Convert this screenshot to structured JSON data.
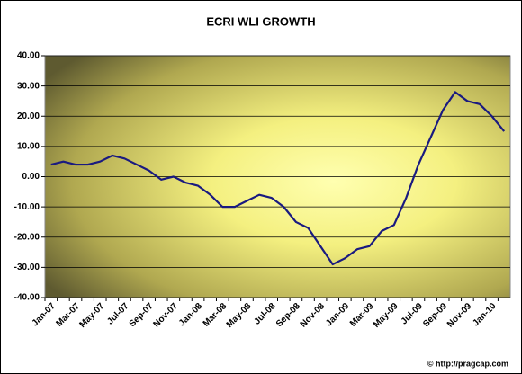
{
  "chart_data": {
    "type": "line",
    "title": "ECRI WLI GROWTH",
    "categories": [
      "Jan-07",
      null,
      "Mar-07",
      null,
      "May-07",
      null,
      "Jul-07",
      null,
      "Sep-07",
      null,
      "Nov-07",
      null,
      "Jan-08",
      null,
      "Mar-08",
      null,
      "May-08",
      null,
      "Jul-08",
      null,
      "Sep-08",
      null,
      "Nov-08",
      null,
      "Jan-09",
      null,
      "Mar-09",
      null,
      "May-09",
      null,
      "Jul-09",
      null,
      "Sep-09",
      null,
      "Nov-09",
      null,
      "Jan-10",
      null
    ],
    "series": [
      {
        "name": "ECRI WLI Growth",
        "color": "#1a1a80",
        "values": [
          4,
          5,
          4,
          4,
          5,
          7,
          6,
          4,
          2,
          -1,
          0,
          -2,
          -3,
          -6,
          -10,
          -10,
          -8,
          -6,
          -7,
          -10,
          -15,
          -17,
          -23,
          -29,
          -27,
          -24,
          -23,
          -18,
          -16,
          -7,
          4,
          13,
          22,
          28,
          25,
          24,
          20,
          15
        ]
      }
    ],
    "ylim": [
      -40,
      40
    ],
    "yticks": [
      {
        "value": -40,
        "label": "-40.00"
      },
      {
        "value": -30,
        "label": "-30.00"
      },
      {
        "value": -20,
        "label": "-20.00"
      },
      {
        "value": -10,
        "label": "-10.00"
      },
      {
        "value": 0,
        "label": "0.00"
      },
      {
        "value": 10,
        "label": "10.00"
      },
      {
        "value": 20,
        "label": "20.00"
      },
      {
        "value": 30,
        "label": "30.00"
      },
      {
        "value": 40,
        "label": "40.00"
      }
    ],
    "grid": true,
    "annotation": "© http://pragcap.com"
  }
}
